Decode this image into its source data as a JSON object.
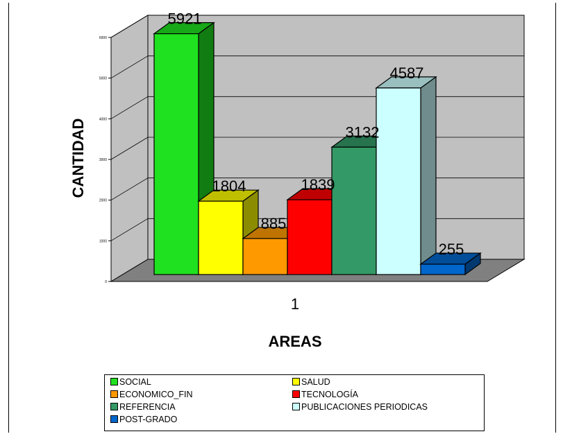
{
  "chart_data": {
    "type": "bar",
    "style": "3d-clustered",
    "categories": [
      "1"
    ],
    "series": [
      {
        "name": "SOCIAL",
        "values": [
          5921
        ],
        "color": "#1fe11f"
      },
      {
        "name": "SALUD",
        "values": [
          1804
        ],
        "color": "#ffff00"
      },
      {
        "name": "ECONOMICO_FIN",
        "values": [
          885
        ],
        "color": "#ff9900"
      },
      {
        "name": "TECNOLOGÍA",
        "values": [
          1839
        ],
        "color": "#ff0000"
      },
      {
        "name": "REFERENCIA",
        "values": [
          3132
        ],
        "color": "#339966"
      },
      {
        "name": "PUBLICACIONES PERIODICAS",
        "values": [
          4587
        ],
        "color": "#ccffff"
      },
      {
        "name": "POST-GRADO",
        "values": [
          255
        ],
        "color": "#0066cc"
      }
    ],
    "xlabel": "AREAS",
    "ylabel": "CANTIDAD",
    "yticks": [
      "0",
      "1000",
      "2000",
      "3000",
      "4000",
      "5000",
      "6000"
    ],
    "ylim": [
      0,
      6000
    ],
    "grid": true,
    "legend_position": "bottom",
    "wall_color": "#c0c0c0",
    "floor_color": "#808080"
  }
}
